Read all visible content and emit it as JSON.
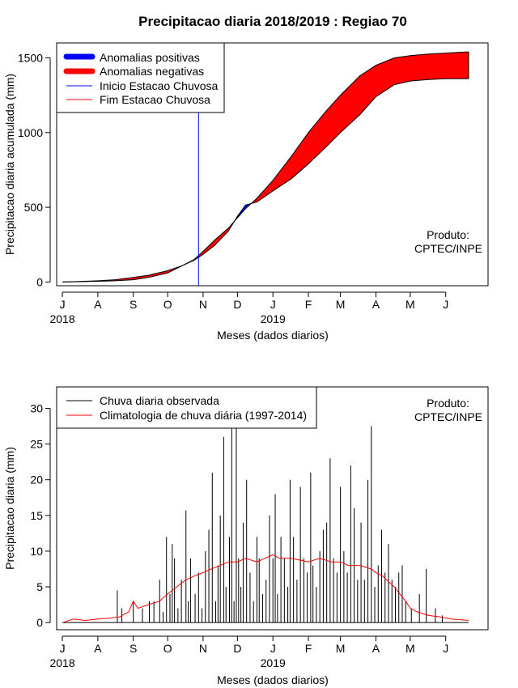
{
  "chart_data": [
    {
      "type": "area",
      "title": "Precipitacao diaria 2018/2019 : Regiao 70",
      "xlabel": "Meses (dados diarios)",
      "ylabel": "Precipitacao diaria acumulada (mm)",
      "x_ticks": [
        "J",
        "A",
        "S",
        "O",
        "N",
        "D",
        "J",
        "F",
        "M",
        "A",
        "M",
        "J"
      ],
      "year_labels": [
        {
          "label": "2018",
          "month_index": 0
        },
        {
          "label": "2019",
          "month_index": 6
        }
      ],
      "x_unit": "days since 1 Jul 2018",
      "x_tick_days": [
        0,
        31,
        62,
        92,
        123,
        153,
        184,
        215,
        243,
        274,
        304,
        335
      ],
      "xlim": [
        -5,
        372
      ],
      "ylim": [
        -25,
        1600
      ],
      "yticks": [
        0,
        500,
        1000,
        1500
      ],
      "grid": false,
      "legend_position": "top-left",
      "legend": [
        {
          "label": "Anomalias positivas",
          "color": "#0000ff",
          "style": "thick"
        },
        {
          "label": "Anomalias negativas",
          "color": "#ff0000",
          "style": "thick"
        },
        {
          "label": "Inicio Estacao Chuvosa",
          "color": "#0000ff",
          "style": "thin"
        },
        {
          "label": "Fim Estacao Chuvosa",
          "color": "#ff0000",
          "style": "thin"
        }
      ],
      "annotation": [
        "Produto:",
        "CPTEC/INPE"
      ],
      "rainy_season_start_day": 119,
      "series": [
        {
          "name": "Climatologia acumulada",
          "x": [
            0,
            15,
            31,
            46,
            62,
            75,
            92,
            105,
            115,
            123,
            133,
            145,
            153,
            160,
            170,
            184,
            200,
            215,
            230,
            243,
            260,
            274,
            290,
            304,
            320,
            335,
            350,
            355
          ],
          "y": [
            0,
            3,
            8,
            15,
            30,
            45,
            75,
            110,
            150,
            205,
            280,
            360,
            430,
            490,
            560,
            680,
            840,
            1000,
            1140,
            1250,
            1380,
            1450,
            1500,
            1515,
            1525,
            1532,
            1538,
            1540
          ]
        },
        {
          "name": "Chuva observada acumulada",
          "x": [
            0,
            15,
            31,
            46,
            62,
            75,
            92,
            105,
            115,
            123,
            133,
            145,
            153,
            160,
            170,
            184,
            200,
            215,
            230,
            243,
            260,
            274,
            290,
            304,
            320,
            335,
            350,
            355
          ],
          "y": [
            0,
            2,
            5,
            8,
            15,
            30,
            60,
            110,
            145,
            185,
            245,
            340,
            440,
            515,
            535,
            610,
            690,
            790,
            900,
            1000,
            1120,
            1240,
            1320,
            1345,
            1355,
            1360,
            1360,
            1360
          ]
        }
      ]
    },
    {
      "type": "line",
      "xlabel": "Meses (dados diarios)",
      "ylabel": "Precipitacao diaria (mm)",
      "x_ticks": [
        "J",
        "A",
        "S",
        "O",
        "N",
        "D",
        "J",
        "F",
        "M",
        "A",
        "M",
        "J"
      ],
      "year_labels": [
        {
          "label": "2018",
          "month_index": 0
        },
        {
          "label": "2019",
          "month_index": 6
        }
      ],
      "x_unit": "days since 1 Jul 2018",
      "x_tick_days": [
        0,
        31,
        62,
        92,
        123,
        153,
        184,
        215,
        243,
        274,
        304,
        335
      ],
      "xlim": [
        -5,
        372
      ],
      "ylim": [
        -1,
        33
      ],
      "yticks": [
        0,
        5,
        10,
        15,
        20,
        25,
        30
      ],
      "grid": false,
      "legend_position": "top-left",
      "legend": [
        {
          "label": "Chuva diaria observada",
          "color": "#000000"
        },
        {
          "label": "Climatologia de chuva diária (1997-2014)",
          "color": "#ff0000"
        }
      ],
      "annotation": [
        "Produto:",
        "CPTEC/INPE"
      ],
      "series": [
        {
          "name": "Chuva diaria observada",
          "style": "spikes",
          "x": [
            48,
            52,
            62,
            70,
            76,
            80,
            85,
            88,
            91,
            94,
            96,
            98,
            101,
            104,
            108,
            110,
            112,
            116,
            119,
            122,
            125,
            128,
            131,
            134,
            136,
            138,
            141,
            143,
            146,
            148,
            150,
            152,
            154,
            156,
            158,
            161,
            164,
            167,
            170,
            172,
            175,
            178,
            181,
            184,
            186,
            188,
            191,
            194,
            197,
            199,
            202,
            205,
            208,
            211,
            214,
            217,
            219,
            222,
            225,
            228,
            231,
            234,
            237,
            240,
            243,
            246,
            249,
            252,
            255,
            258,
            261,
            264,
            267,
            270,
            273,
            276,
            279,
            282,
            285,
            288,
            291,
            294,
            297,
            300,
            305,
            312,
            318,
            326,
            332
          ],
          "y": [
            4.5,
            2,
            3,
            2,
            3,
            3,
            6,
            1.5,
            12,
            4,
            11,
            9,
            2,
            6,
            15.7,
            3,
            9,
            4,
            7,
            2,
            10,
            13,
            21,
            3,
            8,
            15,
            26,
            5,
            12,
            27.5,
            3,
            27.5,
            9,
            5,
            14,
            20,
            7,
            3,
            12,
            9,
            4,
            6,
            15,
            9,
            18,
            4,
            12,
            9,
            5,
            20,
            12,
            6,
            19,
            9,
            7,
            21,
            8,
            5,
            10,
            13,
            14,
            23,
            9,
            7,
            19,
            10,
            7,
            22,
            16,
            6,
            14,
            6,
            20,
            27.5,
            5,
            8,
            13,
            7,
            11,
            6,
            5,
            7,
            8,
            3,
            2,
            4,
            7.5,
            2,
            1
          ]
        },
        {
          "name": "Climatologia de chuva diária (1997-2014)",
          "x": [
            0,
            10,
            20,
            31,
            40,
            50,
            58,
            62,
            66,
            75,
            85,
            92,
            100,
            108,
            115,
            123,
            130,
            138,
            145,
            153,
            160,
            170,
            184,
            190,
            200,
            215,
            225,
            235,
            243,
            250,
            260,
            270,
            274,
            280,
            290,
            295,
            300,
            304,
            310,
            320,
            330,
            340,
            355
          ],
          "y": [
            0,
            0.5,
            0.3,
            0.5,
            0.6,
            0.8,
            1.5,
            3,
            2,
            2.5,
            3,
            4,
            5,
            6,
            6.5,
            7,
            7.5,
            8,
            8.5,
            8.5,
            9,
            8.5,
            9.5,
            9,
            9,
            8.5,
            9,
            8.5,
            8.5,
            8,
            8,
            7.5,
            7,
            6.5,
            5,
            4,
            3,
            2,
            1.5,
            1,
            0.8,
            0.5,
            0.3
          ]
        }
      ]
    }
  ]
}
